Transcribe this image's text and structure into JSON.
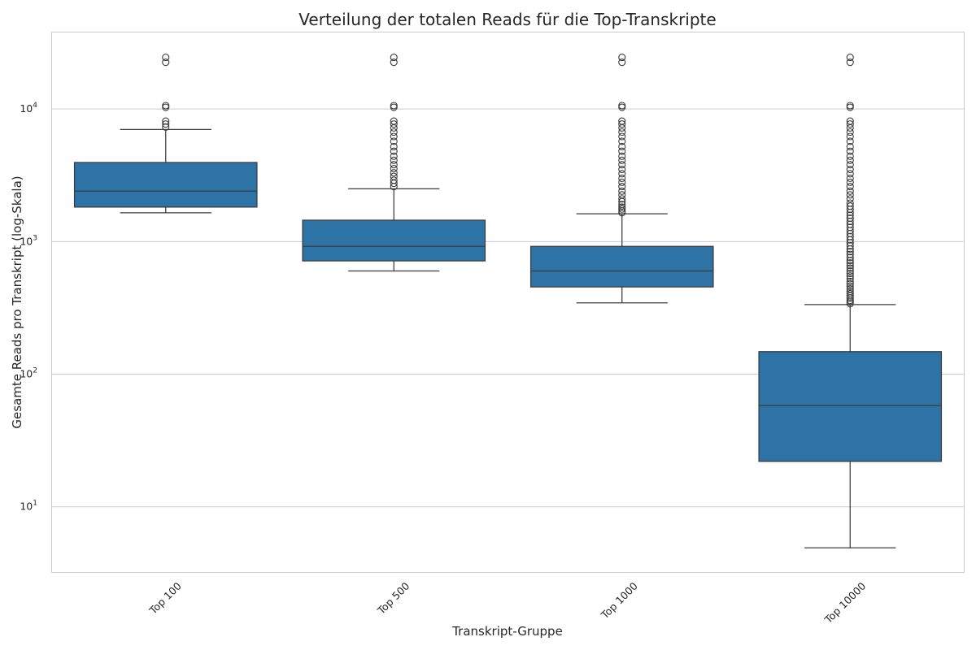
{
  "chart_data": {
    "type": "box",
    "title": "Verteilung der totalen Reads für die Top-Transkripte",
    "xlabel": "Transkript-Gruppe",
    "ylabel": "Gesamte Reads pro Transkript (log-Skala)",
    "y_scale": "log",
    "ylim": [
      3.2,
      38000
    ],
    "y_ticks": [
      {
        "value": 10,
        "base": "10",
        "exp": "1"
      },
      {
        "value": 100,
        "base": "10",
        "exp": "2"
      },
      {
        "value": 1000,
        "base": "10",
        "exp": "3"
      },
      {
        "value": 10000,
        "base": "10",
        "exp": "4"
      }
    ],
    "grid": true,
    "color": "#2e73a6",
    "categories": [
      "Top 100",
      "Top 500",
      "Top 1000",
      "Top 10000"
    ],
    "boxes": [
      {
        "category": "Top 100",
        "whisker_low": 1650,
        "q1": 1820,
        "median": 2400,
        "q3": 3950,
        "whisker_high": 7000,
        "outliers": [
          7300,
          7700,
          8100,
          10300,
          10600,
          22500,
          24500
        ]
      },
      {
        "category": "Top 500",
        "whisker_low": 600,
        "q1": 715,
        "median": 920,
        "q3": 1450,
        "whisker_high": 2500,
        "outliers": [
          2600,
          2750,
          2900,
          3100,
          3300,
          3550,
          3800,
          4100,
          4400,
          4800,
          5200,
          5700,
          6200,
          6700,
          7200,
          7700,
          8100,
          10300,
          10600,
          22500,
          24500
        ]
      },
      {
        "category": "Top 1000",
        "whisker_low": 345,
        "q1": 455,
        "median": 600,
        "q3": 920,
        "whisker_high": 1620,
        "outliers": [
          1650,
          1700,
          1760,
          1820,
          1900,
          2000,
          2100,
          2250,
          2400,
          2600,
          2800,
          3000,
          3250,
          3500,
          3800,
          4100,
          4400,
          4800,
          5200,
          5700,
          6200,
          6700,
          7200,
          7700,
          8100,
          10300,
          10600,
          22500,
          24500
        ]
      },
      {
        "category": "Top 10000",
        "whisker_low": 4.9,
        "q1": 22,
        "median": 58,
        "q3": 148,
        "whisker_high": 335,
        "outliers": [
          340,
          350,
          360,
          375,
          390,
          405,
          420,
          440,
          460,
          480,
          500,
          525,
          550,
          575,
          600,
          630,
          660,
          690,
          720,
          760,
          800,
          840,
          880,
          930,
          980,
          1030,
          1090,
          1150,
          1210,
          1280,
          1350,
          1420,
          1500,
          1580,
          1660,
          1750,
          1850,
          1950,
          2100,
          2250,
          2400,
          2600,
          2800,
          3000,
          3250,
          3500,
          3800,
          4100,
          4400,
          4800,
          5200,
          5700,
          6200,
          6700,
          7200,
          7700,
          8100,
          10300,
          10600,
          22500,
          24500
        ]
      }
    ]
  }
}
